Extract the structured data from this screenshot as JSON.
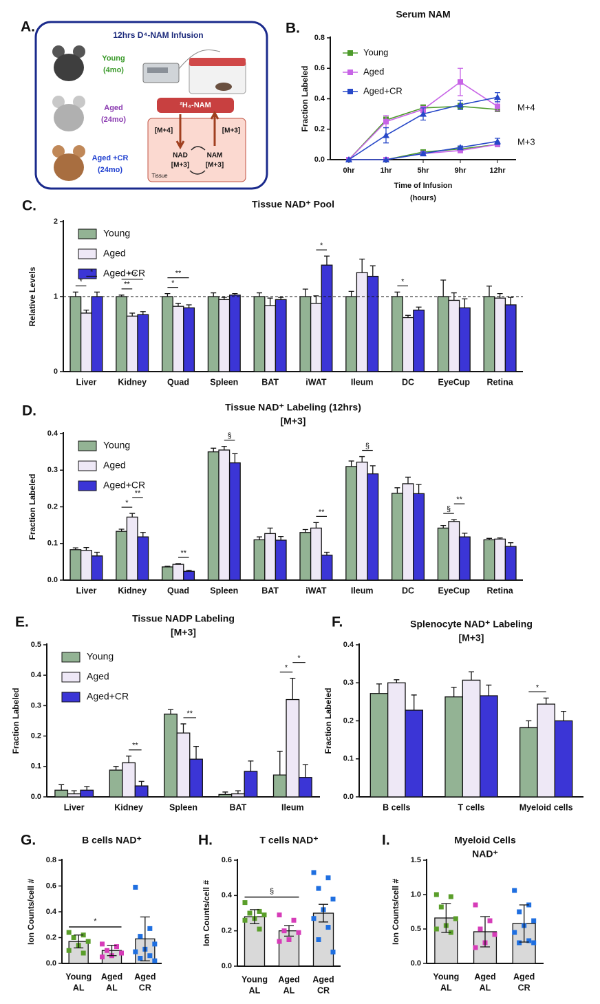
{
  "panel_a": {
    "panel": "A.",
    "title": "12hrs D⁴-NAM Infusion",
    "groups": [
      {
        "name": "Young",
        "age": "(4mo)"
      },
      {
        "name": "Aged",
        "age": "(24mo)"
      },
      {
        "name": "Aged +CR",
        "age": "(24mo)"
      }
    ],
    "tracer": "²H₄-NAM",
    "arrow_labels": [
      "[M+4]",
      "[M+3]"
    ],
    "nodes": [
      {
        "name": "NAD",
        "label": "[M+3]"
      },
      {
        "name": "NAM",
        "label": "[M+3]"
      }
    ],
    "compartment": "Tissue"
  },
  "chart_data": [
    {
      "type": "line",
      "panel": "B.",
      "title": "Serum NAM",
      "ylabel": "Fraction Labeled",
      "xlabel": [
        "Time of Infusion",
        "(hours)"
      ],
      "categories": [
        "0hr",
        "1hr",
        "5hr",
        "9hr",
        "12hr"
      ],
      "ylim": [
        0,
        0.8
      ],
      "yticks": [
        {
          "value": 0,
          "label": "0.0"
        },
        0.2,
        0.4,
        0.6,
        0.8
      ],
      "legend": "upper left",
      "series": [
        {
          "name": "Young",
          "color": "#4c9a2a",
          "marker": "square",
          "values": [
            0,
            0.26,
            0.34,
            0.35,
            0.33
          ],
          "errors": [
            0,
            0.02,
            0.02,
            0.02,
            0.01
          ],
          "values_m3": [
            0,
            0,
            0.05,
            0.07,
            0.1
          ],
          "errors_m3": [
            0,
            0,
            0.01,
            0.01,
            0.01
          ]
        },
        {
          "name": "Aged",
          "color": "#c764e6",
          "marker": "square",
          "values": [
            0,
            0.25,
            0.33,
            0.51,
            0.35
          ],
          "errors": [
            0,
            0.04,
            0.02,
            0.09,
            0.03
          ],
          "values_m3": [
            0,
            0,
            0.04,
            0.06,
            0.1
          ],
          "errors_m3": [
            0,
            0,
            0.01,
            0.01,
            0.01
          ]
        },
        {
          "name": "Aged+CR",
          "color": "#2748c8",
          "marker": "triangle",
          "values": [
            0,
            0.16,
            0.3,
            0.36,
            0.41
          ],
          "errors": [
            0,
            0.05,
            0.04,
            0.03,
            0.03
          ],
          "values_m3": [
            0,
            0,
            0.04,
            0.08,
            0.12
          ],
          "errors_m3": [
            0,
            0,
            0.01,
            0.01,
            0.02
          ]
        }
      ],
      "annotations": [
        "M+4",
        "M+3"
      ]
    },
    {
      "type": "bar",
      "panel": "C.",
      "title": "Tissue NAD⁺ Pool",
      "ylabel": "Relative Levels",
      "categories": [
        "Liver",
        "Kidney",
        "Quad",
        "Spleen",
        "BAT",
        "iWAT",
        "Ileum",
        "DC",
        "EyeCup",
        "Retina"
      ],
      "ylim": [
        0,
        2
      ],
      "yticks": [
        0,
        1,
        2
      ],
      "reference_line": 1,
      "legend": "upper left",
      "series": [
        {
          "name": "Young",
          "color": "#93b394",
          "values": [
            1,
            1,
            1,
            1,
            1,
            1,
            1,
            1,
            1,
            1
          ],
          "errors": [
            0.06,
            0.02,
            0.04,
            0.05,
            0.05,
            0.1,
            0.07,
            0.06,
            0.22,
            0.14
          ]
        },
        {
          "name": "Aged",
          "color": "#eee8f6",
          "values": [
            0.78,
            0.74,
            0.87,
            0.96,
            0.88,
            0.91,
            1.32,
            0.72,
            0.95,
            0.98
          ],
          "errors": [
            0.04,
            0.04,
            0.04,
            0.03,
            0.1,
            0.1,
            0.18,
            0.03,
            0.1,
            0.06
          ]
        },
        {
          "name": "Aged+CR",
          "color": "#3b35d6",
          "values": [
            1,
            0.76,
            0.85,
            1.02,
            0.96,
            1.42,
            1.27,
            0.82,
            0.85,
            0.89
          ],
          "errors": [
            0.06,
            0.04,
            0.04,
            0.02,
            0.03,
            0.12,
            0.14,
            0.04,
            0.12,
            0.1
          ]
        }
      ],
      "significance": [
        {
          "category": 0,
          "from": 0,
          "to": 1,
          "label": "*"
        },
        {
          "category": 0,
          "from": 1,
          "to": 2,
          "label": "*"
        },
        {
          "category": 1,
          "from": 0,
          "to": 1,
          "label": "**"
        },
        {
          "category": 1,
          "from": 0,
          "to": 2,
          "label": "***"
        },
        {
          "category": 2,
          "from": 0,
          "to": 1,
          "label": "*"
        },
        {
          "category": 2,
          "from": 0,
          "to": 2,
          "label": "**"
        },
        {
          "category": 5,
          "from": 1,
          "to": 2,
          "label": "*"
        },
        {
          "category": 7,
          "from": 0,
          "to": 1,
          "label": "*"
        }
      ]
    },
    {
      "type": "bar",
      "panel": "D.",
      "title": "Tissue NAD⁺ Labeling (12hrs)",
      "subtitle": "[M+3]",
      "ylabel": "Fraction Labeled",
      "categories": [
        "Liver",
        "Kidney",
        "Quad",
        "Spleen",
        "BAT",
        "iWAT",
        "Ileum",
        "DC",
        "EyeCup",
        "Retina"
      ],
      "ylim": [
        0,
        0.4
      ],
      "yticks": [
        {
          "value": 0,
          "label": "0.0"
        },
        0.1,
        0.2,
        0.3,
        0.4
      ],
      "legend": "upper left",
      "series": [
        {
          "name": "Young",
          "color": "#93b394",
          "values": [
            0.083,
            0.133,
            0.036,
            0.35,
            0.11,
            0.13,
            0.31,
            0.237,
            0.142,
            0.11
          ],
          "errors": [
            0.005,
            0.006,
            0.002,
            0.01,
            0.008,
            0.008,
            0.015,
            0.015,
            0.007,
            0.004
          ]
        },
        {
          "name": "Aged",
          "color": "#eee8f6",
          "values": [
            0.081,
            0.172,
            0.043,
            0.355,
            0.127,
            0.142,
            0.322,
            0.263,
            0.16,
            0.112
          ],
          "errors": [
            0.008,
            0.01,
            0.002,
            0.01,
            0.015,
            0.015,
            0.015,
            0.018,
            0.005,
            0.003
          ]
        },
        {
          "name": "Aged+CR",
          "color": "#3b35d6",
          "values": [
            0.066,
            0.118,
            0.024,
            0.32,
            0.109,
            0.068,
            0.29,
            0.236,
            0.118,
            0.092
          ],
          "errors": [
            0.01,
            0.012,
            0.003,
            0.025,
            0.01,
            0.008,
            0.022,
            0.025,
            0.01,
            0.01
          ]
        }
      ],
      "significance": [
        {
          "category": 1,
          "from": 0,
          "to": 1,
          "label": "*"
        },
        {
          "category": 1,
          "from": 1,
          "to": 2,
          "label": "**"
        },
        {
          "category": 2,
          "from": 1,
          "to": 2,
          "label": "**"
        },
        {
          "category": 3,
          "from": 1,
          "to": 2,
          "label": "§"
        },
        {
          "category": 5,
          "from": 1,
          "to": 2,
          "label": "**"
        },
        {
          "category": 6,
          "from": 1,
          "to": 2,
          "label": "§"
        },
        {
          "category": 8,
          "from": 0,
          "to": 1,
          "label": "§"
        },
        {
          "category": 8,
          "from": 1,
          "to": 2,
          "label": "**"
        }
      ]
    },
    {
      "type": "bar",
      "panel": "E.",
      "title": "Tissue NADP Labeling",
      "subtitle": "[M+3]",
      "ylabel": "Fraction Labeled",
      "categories": [
        "Liver",
        "Kidney",
        "Spleen",
        "BAT",
        "Ileum"
      ],
      "ylim": [
        0,
        0.5
      ],
      "yticks": [
        {
          "value": 0,
          "label": "0.0"
        },
        0.1,
        0.2,
        0.3,
        0.4,
        0.5
      ],
      "legend": "upper left",
      "series": [
        {
          "name": "Young",
          "color": "#93b394",
          "values": [
            0.022,
            0.088,
            0.272,
            0.008,
            0.072
          ],
          "errors": [
            0.018,
            0.012,
            0.015,
            0.008,
            0.078
          ]
        },
        {
          "name": "Aged",
          "color": "#eee8f6",
          "values": [
            0.01,
            0.112,
            0.21,
            0.01,
            0.32
          ],
          "errors": [
            0.01,
            0.022,
            0.03,
            0.01,
            0.07
          ]
        },
        {
          "name": "Aged+CR",
          "color": "#3b35d6",
          "values": [
            0.022,
            0.036,
            0.124,
            0.084,
            0.064
          ],
          "errors": [
            0.012,
            0.015,
            0.042,
            0.034,
            0.042
          ]
        }
      ],
      "significance": [
        {
          "category": 1,
          "from": 1,
          "to": 2,
          "label": "**"
        },
        {
          "category": 2,
          "from": 1,
          "to": 2,
          "label": "**"
        },
        {
          "category": 4,
          "from": 0,
          "to": 1,
          "label": "*"
        },
        {
          "category": 4,
          "from": 1,
          "to": 2,
          "label": "*"
        }
      ]
    },
    {
      "type": "bar",
      "panel": "F.",
      "title": "Splenocyte NAD⁺ Labeling",
      "subtitle": "[M+3]",
      "ylabel": "Fraction Labeled",
      "categories": [
        "B cells",
        "T cells",
        "Myeloid cells"
      ],
      "ylim": [
        0,
        0.4
      ],
      "yticks": [
        {
          "value": 0,
          "label": "0.0"
        },
        0.1,
        0.2,
        0.3,
        0.4
      ],
      "series": [
        {
          "color": "#93b394",
          "values": [
            0.272,
            0.263,
            0.182
          ],
          "errors": [
            0.025,
            0.025,
            0.018
          ]
        },
        {
          "color": "#eee8f6",
          "values": [
            0.3,
            0.307,
            0.244
          ],
          "errors": [
            0.008,
            0.022,
            0.016
          ]
        },
        {
          "color": "#3b35d6",
          "values": [
            0.228,
            0.266,
            0.2
          ],
          "errors": [
            0.04,
            0.028,
            0.025
          ]
        }
      ],
      "significance": [
        {
          "category": 2,
          "from": 0,
          "to": 1,
          "label": "*"
        }
      ]
    },
    {
      "type": "bar_scatter",
      "panel": "G.",
      "title": "B cells NAD⁺",
      "ylabel": "Ion Counts/cell #",
      "categories": [
        [
          "Young",
          "AL"
        ],
        [
          "Aged",
          "AL"
        ],
        [
          "Aged",
          "CR"
        ]
      ],
      "ylim": [
        0,
        0.8
      ],
      "yticks": [
        {
          "value": 0,
          "label": "0.0"
        },
        0.2,
        0.4,
        0.6,
        0.8
      ],
      "color": "#d9d9d9",
      "point_colors": [
        "#5a9e2a",
        "#d63cb8",
        "#1f6fe0"
      ],
      "values": [
        0.17,
        0.1,
        0.19
      ],
      "errors": [
        0.05,
        0.04,
        0.17
      ],
      "points": [
        [
          0.24,
          0.22,
          0.2,
          0.17,
          0.14,
          0.1,
          0.08
        ],
        [
          0.15,
          0.13,
          0.1,
          0.08,
          0.06,
          0.05
        ],
        [
          0.59,
          0.27,
          0.21,
          0.15,
          0.11,
          0.09,
          0.06,
          0.04,
          0.02
        ]
      ],
      "significance": [
        {
          "from": 0,
          "to": 1,
          "label": "*"
        }
      ]
    },
    {
      "type": "bar_scatter",
      "panel": "H.",
      "title": "T cells NAD⁺",
      "ylabel": "Ion Counts/cell #",
      "categories": [
        [
          "Young",
          "AL"
        ],
        [
          "Aged",
          "AL"
        ],
        [
          "Aged",
          "CR"
        ]
      ],
      "ylim": [
        0,
        0.6
      ],
      "yticks": [
        {
          "value": 0,
          "label": "0.0"
        },
        0.2,
        0.4,
        0.6
      ],
      "color": "#d9d9d9",
      "point_colors": [
        "#5a9e2a",
        "#d63cb8",
        "#1f6fe0"
      ],
      "values": [
        0.28,
        0.2,
        0.3
      ],
      "errors": [
        0.04,
        0.03,
        0.05
      ],
      "points": [
        [
          0.36,
          0.31,
          0.3,
          0.29,
          0.27,
          0.26,
          0.21
        ],
        [
          0.29,
          0.26,
          0.2,
          0.19,
          0.15,
          0.14
        ],
        [
          0.53,
          0.5,
          0.44,
          0.38,
          0.32,
          0.27,
          0.22,
          0.15,
          0.08
        ]
      ],
      "significance": [
        {
          "from": 0,
          "to": 1,
          "label": "§"
        }
      ]
    },
    {
      "type": "bar_scatter",
      "panel": "I.",
      "title": "Myeloid Cells",
      "subtitle": "NAD⁺",
      "ylabel": "Ion Counts/cell #",
      "categories": [
        [
          "Young",
          "AL"
        ],
        [
          "Aged",
          "AL"
        ],
        [
          "Aged",
          "CR"
        ]
      ],
      "ylim": [
        0,
        1.5
      ],
      "yticks": [
        {
          "value": 0,
          "label": "0.0"
        },
        0.5,
        {
          "value": 1,
          "label": "1.0"
        },
        1.5
      ],
      "color": "#d9d9d9",
      "point_colors": [
        "#5a9e2a",
        "#d63cb8",
        "#1f6fe0"
      ],
      "values": [
        0.66,
        0.46,
        0.58
      ],
      "errors": [
        0.21,
        0.22,
        0.27
      ],
      "points": [
        [
          1,
          0.97,
          0.82,
          0.65,
          0.55,
          0.5,
          0.45
        ],
        [
          0.85,
          0.62,
          0.5,
          0.42,
          0.3,
          0.23
        ],
        [
          1.06,
          0.85,
          0.75,
          0.62,
          0.55,
          0.45,
          0.33,
          0.3,
          0.3
        ]
      ]
    }
  ]
}
